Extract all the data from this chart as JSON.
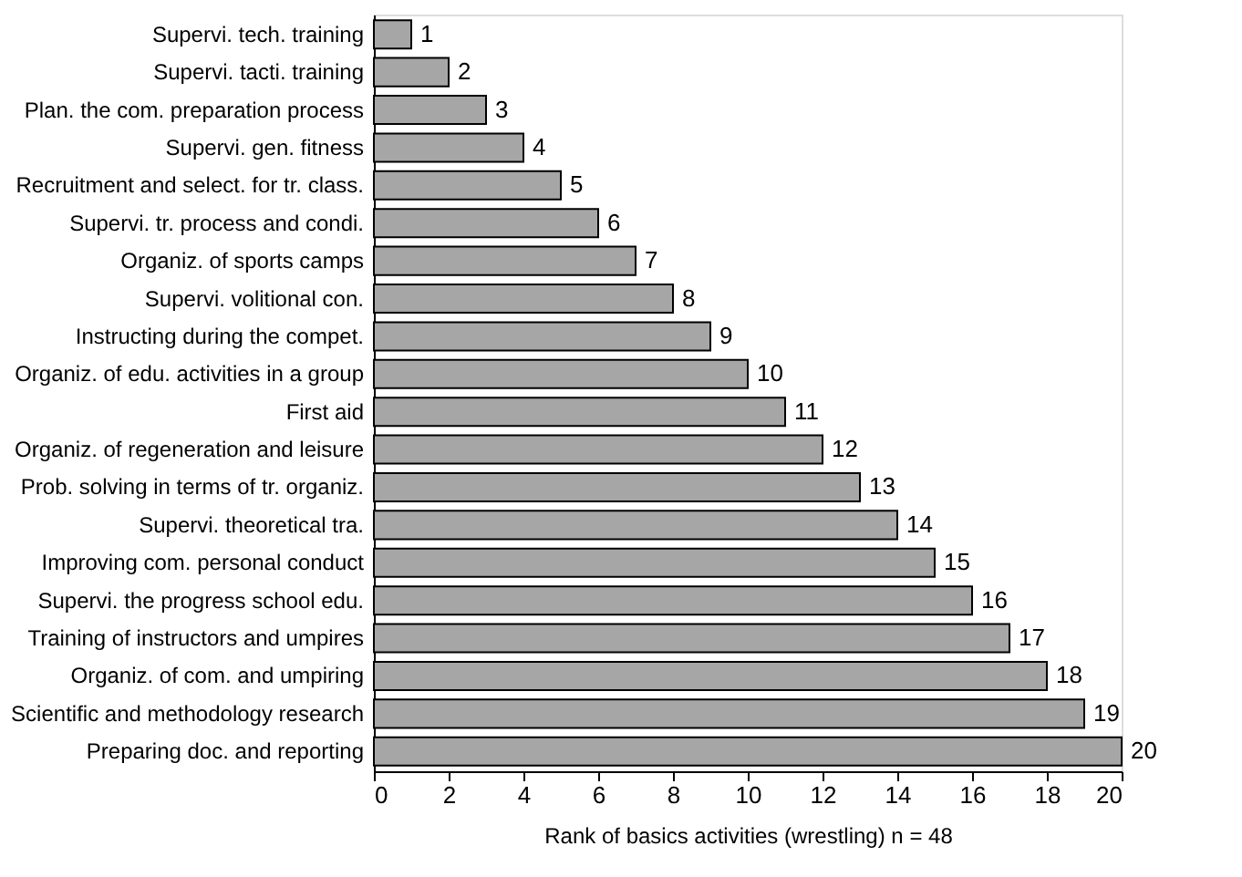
{
  "chart_data": {
    "type": "bar",
    "orientation": "horizontal",
    "xlabel": "Rank of basics activities (wrestling) n = 48",
    "categories": [
      "Supervi. tech. training",
      "Supervi. tacti. training",
      "Plan. the com. preparation process",
      "Supervi. gen. fitness",
      "Recruitment and select. for tr. class.",
      "Supervi. tr. process and condi.",
      "Organiz. of sports camps",
      "Supervi. volitional con.",
      "Instructing during the compet.",
      "Organiz. of edu. activities in a group",
      "First aid",
      "Organiz. of regeneration and leisure",
      "Prob. solving in terms of tr. organiz.",
      "Supervi. theoretical tra.",
      "Improving com. personal conduct",
      "Supervi. the progress school edu.",
      "Training of instructors and umpires",
      "Organiz. of com. and umpiring",
      "Scientific and methodology research",
      "Preparing doc. and reporting"
    ],
    "values": [
      1,
      2,
      3,
      4,
      5,
      6,
      7,
      8,
      9,
      10,
      11,
      12,
      13,
      14,
      15,
      16,
      17,
      18,
      19,
      20
    ],
    "color": "#a6a6a6",
    "xlim": [
      0,
      20
    ],
    "xticks": [
      0,
      2,
      4,
      6,
      8,
      10,
      12,
      14,
      16,
      18,
      20
    ],
    "data_labels": true,
    "grid": false,
    "legend": false
  }
}
